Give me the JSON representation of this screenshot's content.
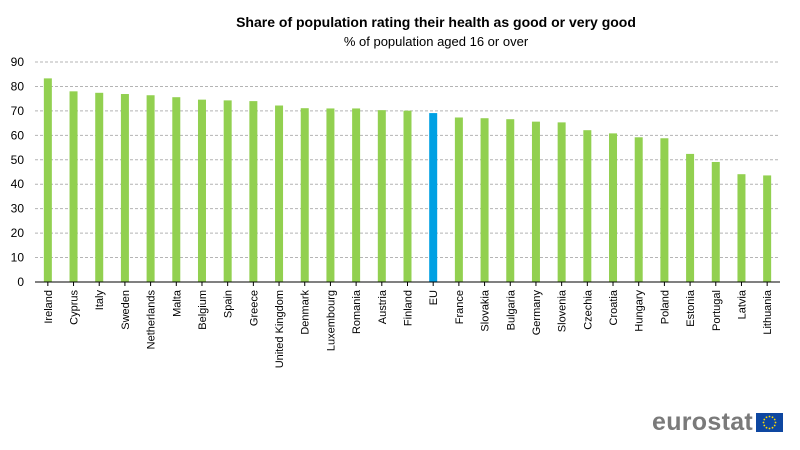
{
  "logo": {
    "text": "eurostat",
    "flag_color": "#0e47a1",
    "star_color": "#ffde00"
  },
  "colors": {
    "bar": "#92d050",
    "highlight": "#00a0e3"
  },
  "chart_data": {
    "type": "bar",
    "title": "Share of population rating their health as good or very good",
    "subtitle": "% of population aged 16 or over",
    "xlabel": "",
    "ylabel": "",
    "ylim": [
      0,
      90
    ],
    "yticks": [
      0,
      10,
      20,
      30,
      40,
      50,
      60,
      70,
      80,
      90
    ],
    "grid": true,
    "highlight_category": "EU",
    "categories": [
      "Ireland",
      "Cyprus",
      "Italy",
      "Sweden",
      "Netherlands",
      "Malta",
      "Belgium",
      "Spain",
      "Greece",
      "United Kingdom",
      "Denmark",
      "Luxembourg",
      "Romania",
      "Austria",
      "Finland",
      "EU",
      "France",
      "Slovakia",
      "Bulgaria",
      "Germany",
      "Slovenia",
      "Czechia",
      "Croatia",
      "Hungary",
      "Poland",
      "Estonia",
      "Portugal",
      "Latvia",
      "Lithuania"
    ],
    "values": [
      83.3,
      78.0,
      77.4,
      76.9,
      76.4,
      75.6,
      74.6,
      74.3,
      74.0,
      72.2,
      71.1,
      71.0,
      71.0,
      70.3,
      70.1,
      69.1,
      67.3,
      67.0,
      66.6,
      65.6,
      65.3,
      62.1,
      60.8,
      59.2,
      58.8,
      52.4,
      49.1,
      44.1,
      43.6
    ]
  }
}
